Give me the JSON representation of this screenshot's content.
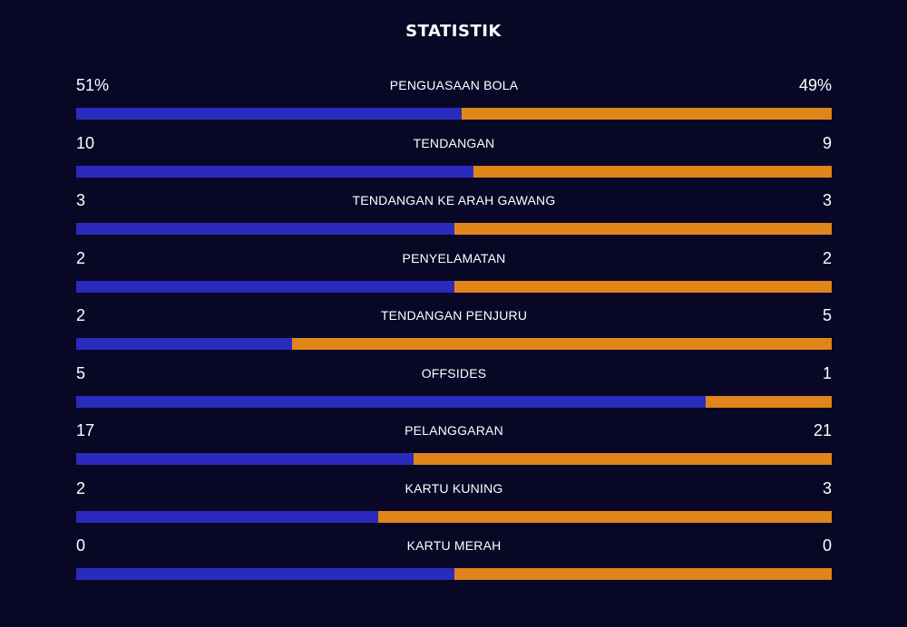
{
  "title": "STATISTIK",
  "colors": {
    "background": "#080726",
    "home": "#2a2bbd",
    "away": "#e0851a"
  },
  "stats": [
    {
      "label": "PENGUASAAN BOLA",
      "home": "51%",
      "away": "49%",
      "home_share": 0.51
    },
    {
      "label": "TENDANGAN",
      "home": "10",
      "away": "9",
      "home_share": 0.526
    },
    {
      "label": "TENDANGAN KE ARAH GAWANG",
      "home": "3",
      "away": "3",
      "home_share": 0.5
    },
    {
      "label": "PENYELAMATAN",
      "home": "2",
      "away": "2",
      "home_share": 0.5
    },
    {
      "label": "TENDANGAN PENJURU",
      "home": "2",
      "away": "5",
      "home_share": 0.286
    },
    {
      "label": "OFFSIDES",
      "home": "5",
      "away": "1",
      "home_share": 0.833
    },
    {
      "label": "PELANGGARAN",
      "home": "17",
      "away": "21",
      "home_share": 0.447
    },
    {
      "label": "KARTU KUNING",
      "home": "2",
      "away": "3",
      "home_share": 0.4
    },
    {
      "label": "KARTU MERAH",
      "home": "0",
      "away": "0",
      "home_share": 0.5
    }
  ]
}
